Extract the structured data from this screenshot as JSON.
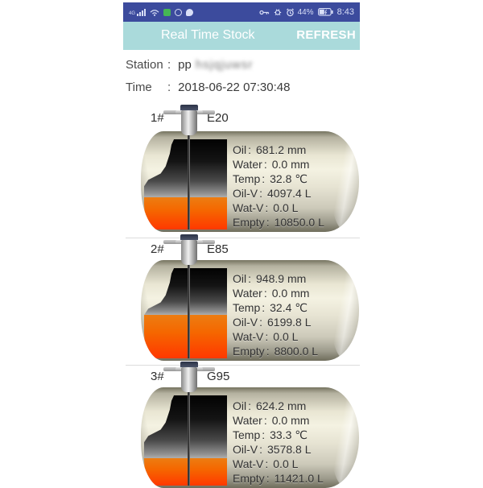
{
  "ui": {
    "colon": ":"
  },
  "status_bar": {
    "network": "4G",
    "time": "8:43",
    "battery_percent": "44%",
    "left_icons": [
      "signal-icon",
      "wifi-icon",
      "wechat-icon",
      "contacts-icon",
      "message-icon"
    ],
    "right_icons": [
      "key-icon",
      "bug-icon",
      "alarm-icon",
      "battery-icon"
    ],
    "bg_color": "#3c4b9d"
  },
  "header": {
    "title": "Real Time Stock",
    "refresh_label": "REFRESH",
    "bg_color": "#aadadb",
    "text_color": "#ffffff"
  },
  "info": {
    "station_label": "Station",
    "station_value_visible": "pp",
    "station_value_blurred": "hsjqjuwsr",
    "time_label": "Time",
    "time_value": "2018-06-22 07:30:48"
  },
  "tanks": [
    {
      "number": "1#",
      "fuel": "E20",
      "fill_pct": 36,
      "empty_pct": 64,
      "rows": [
        {
          "label": "Oil",
          "value": "681.2 mm"
        },
        {
          "label": "Water",
          "value": "0.0 mm"
        },
        {
          "label": "Temp",
          "value": "32.8 ℃"
        },
        {
          "label": "Oil-V",
          "value": "4097.4 L"
        },
        {
          "label": "Wat-V",
          "value": "0.0 L"
        },
        {
          "label": "Empty",
          "value": "10850.0 L"
        }
      ]
    },
    {
      "number": "2#",
      "fuel": "E85",
      "fill_pct": 48,
      "empty_pct": 52,
      "rows": [
        {
          "label": "Oil",
          "value": "948.9 mm"
        },
        {
          "label": "Water",
          "value": "0.0 mm"
        },
        {
          "label": "Temp",
          "value": "32.4 ℃"
        },
        {
          "label": "Oil-V",
          "value": "6199.8 L"
        },
        {
          "label": "Wat-V",
          "value": "0.0 L"
        },
        {
          "label": "Empty",
          "value": "8800.0 L"
        }
      ]
    },
    {
      "number": "3#",
      "fuel": "G95",
      "fill_pct": 30,
      "empty_pct": 70,
      "rows": [
        {
          "label": "Oil",
          "value": "624.2 mm"
        },
        {
          "label": "Water",
          "value": "0.0 mm"
        },
        {
          "label": "Temp",
          "value": "33.3 ℃"
        },
        {
          "label": "Oil-V",
          "value": "3578.8 L"
        },
        {
          "label": "Wat-V",
          "value": "0.0 L"
        },
        {
          "label": "Empty",
          "value": "11421.0 L"
        }
      ]
    }
  ],
  "colors": {
    "oil_top": "#ec7d12",
    "oil_bottom": "#ff3800",
    "tank_light": "#f4f2e2",
    "tank_dark": "#6f6d5c"
  }
}
